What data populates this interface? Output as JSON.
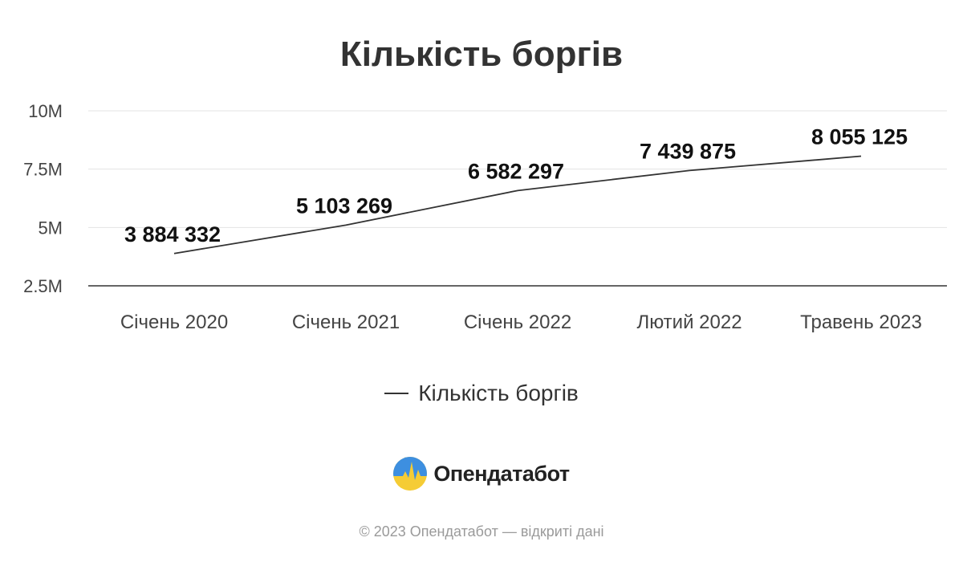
{
  "chart_data": {
    "type": "line",
    "title": "Кількість боргів",
    "categories": [
      "Січень 2020",
      "Січень 2021",
      "Січень 2022",
      "Лютий 2022",
      "Травень 2023"
    ],
    "series": [
      {
        "name": "Кількість боргів",
        "values": [
          3884332,
          5103269,
          6582297,
          7439875,
          8055125
        ],
        "labels": [
          "3 884 332",
          "5 103 269",
          "6 582 297",
          "7 439 875",
          "8 055 125"
        ],
        "color": "#333333"
      }
    ],
    "yticks": [
      {
        "value": 2500000,
        "label": "2.5M"
      },
      {
        "value": 5000000,
        "label": "5M"
      },
      {
        "value": 7500000,
        "label": "7.5M"
      },
      {
        "value": 10000000,
        "label": "10M"
      }
    ],
    "ylim": [
      2500000,
      10000000
    ],
    "xlabel": "",
    "ylabel": "",
    "grid": true,
    "legend_position": "bottom"
  },
  "branding": {
    "logo_name": "Опендатабот",
    "footer": "© 2023 Опендатабот — відкриті дані",
    "colors": {
      "logo_blue": "#3d8fe0",
      "logo_yellow": "#f5cc35"
    }
  }
}
